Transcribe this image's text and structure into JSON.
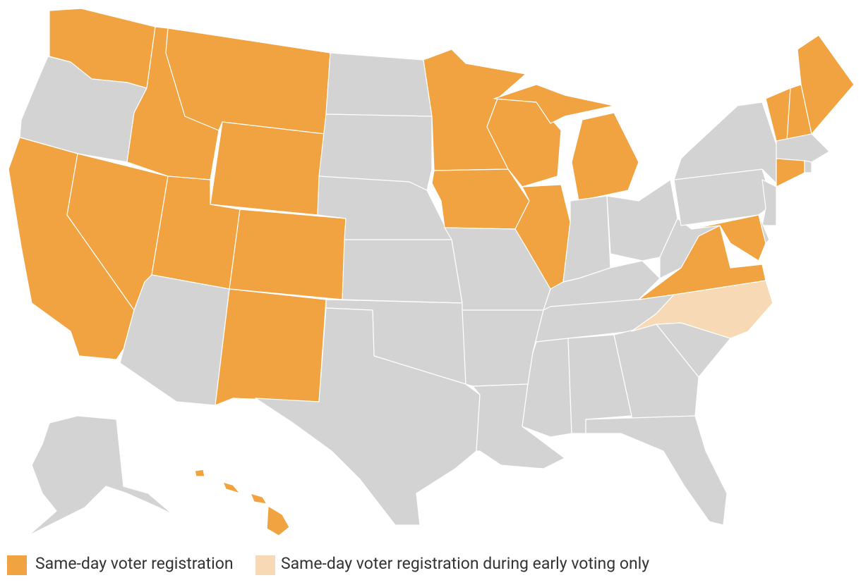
{
  "legend": [
    {
      "label": "Same-day voter registration",
      "color": "#f0a340"
    },
    {
      "label": "Same-day voter registration during early voting only",
      "color": "#f7d9b5"
    }
  ]
}
